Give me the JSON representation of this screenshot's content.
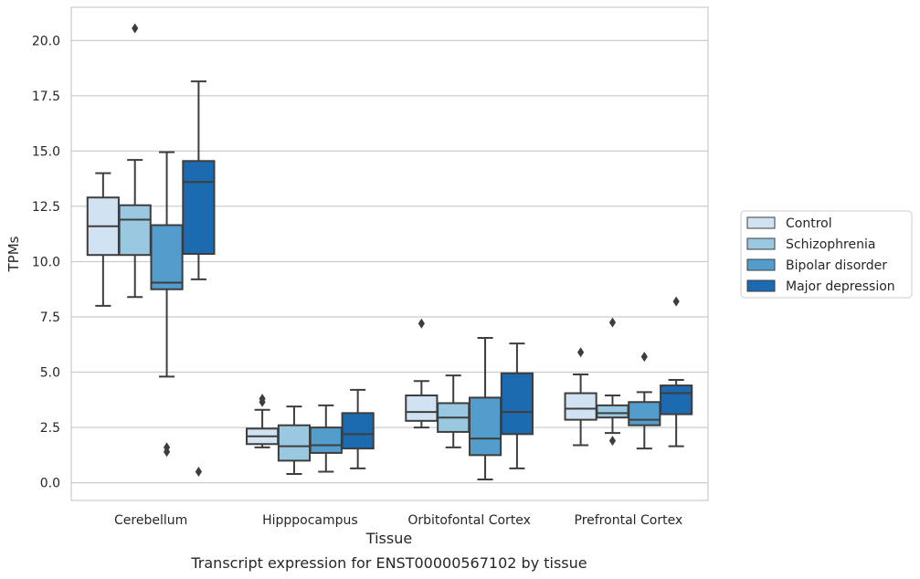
{
  "chart_data": {
    "type": "boxplot",
    "xlabel": "Tissue",
    "ylabel": "TPMs",
    "caption": "Transcript expression for ENST00000567102 by tissue",
    "ylim": [
      -0.8,
      21.5
    ],
    "yticks": [
      0.0,
      2.5,
      5.0,
      7.5,
      10.0,
      12.5,
      15.0,
      17.5,
      20.0
    ],
    "ytick_labels": [
      "0.0",
      "2.5",
      "5.0",
      "7.5",
      "10.0",
      "12.5",
      "15.0",
      "17.5",
      "20.0"
    ],
    "grid": "horizontal",
    "legend_position": "right",
    "categories": [
      "Cerebellum",
      "Hipppocampus",
      "Orbitofontal Cortex",
      "Prefrontal Cortex"
    ],
    "series": [
      {
        "name": "Control",
        "color": "#d1e2f2",
        "boxes": [
          {
            "whislo": 8.0,
            "q1": 10.3,
            "med": 11.6,
            "q3": 12.9,
            "whishi": 14.0,
            "fliers": []
          },
          {
            "whislo": 1.6,
            "q1": 1.75,
            "med": 2.1,
            "q3": 2.45,
            "whishi": 3.3,
            "fliers": [
              3.65,
              3.8
            ]
          },
          {
            "whislo": 2.5,
            "q1": 2.8,
            "med": 3.2,
            "q3": 3.95,
            "whishi": 4.6,
            "fliers": [
              7.2
            ]
          },
          {
            "whislo": 1.7,
            "q1": 2.85,
            "med": 3.35,
            "q3": 4.05,
            "whishi": 4.9,
            "fliers": [
              5.9
            ]
          }
        ]
      },
      {
        "name": "Schizophrenia",
        "color": "#9ac8e0",
        "boxes": [
          {
            "whislo": 8.4,
            "q1": 10.3,
            "med": 11.9,
            "q3": 12.55,
            "whishi": 14.6,
            "fliers": [
              20.55
            ]
          },
          {
            "whislo": 0.4,
            "q1": 1.0,
            "med": 1.65,
            "q3": 2.6,
            "whishi": 3.45,
            "fliers": []
          },
          {
            "whislo": 1.6,
            "q1": 2.3,
            "med": 2.95,
            "q3": 3.6,
            "whishi": 4.85,
            "fliers": []
          },
          {
            "whislo": 2.25,
            "q1": 2.95,
            "med": 3.15,
            "q3": 3.5,
            "whishi": 3.95,
            "fliers": [
              1.9,
              7.25
            ]
          }
        ]
      },
      {
        "name": "Bipolar disorder",
        "color": "#529dcc",
        "boxes": [
          {
            "whislo": 4.8,
            "q1": 8.75,
            "med": 9.05,
            "q3": 11.65,
            "whishi": 14.95,
            "fliers": [
              1.4,
              1.6
            ]
          },
          {
            "whislo": 0.5,
            "q1": 1.35,
            "med": 1.7,
            "q3": 2.5,
            "whishi": 3.5,
            "fliers": []
          },
          {
            "whislo": 0.15,
            "q1": 1.25,
            "med": 2.0,
            "q3": 3.85,
            "whishi": 6.55,
            "fliers": []
          },
          {
            "whislo": 1.55,
            "q1": 2.6,
            "med": 2.85,
            "q3": 3.65,
            "whishi": 4.1,
            "fliers": [
              5.7
            ]
          }
        ]
      },
      {
        "name": "Major depression",
        "color": "#1c6aaf",
        "boxes": [
          {
            "whislo": 9.2,
            "q1": 10.35,
            "med": 13.6,
            "q3": 14.55,
            "whishi": 18.15,
            "fliers": [
              0.5
            ]
          },
          {
            "whislo": 0.65,
            "q1": 1.55,
            "med": 2.2,
            "q3": 3.15,
            "whishi": 4.2,
            "fliers": []
          },
          {
            "whislo": 0.65,
            "q1": 2.2,
            "med": 3.2,
            "q3": 4.95,
            "whishi": 6.3,
            "fliers": []
          },
          {
            "whislo": 1.65,
            "q1": 3.1,
            "med": 4.05,
            "q3": 4.4,
            "whishi": 4.65,
            "fliers": [
              8.2
            ]
          }
        ]
      }
    ]
  }
}
